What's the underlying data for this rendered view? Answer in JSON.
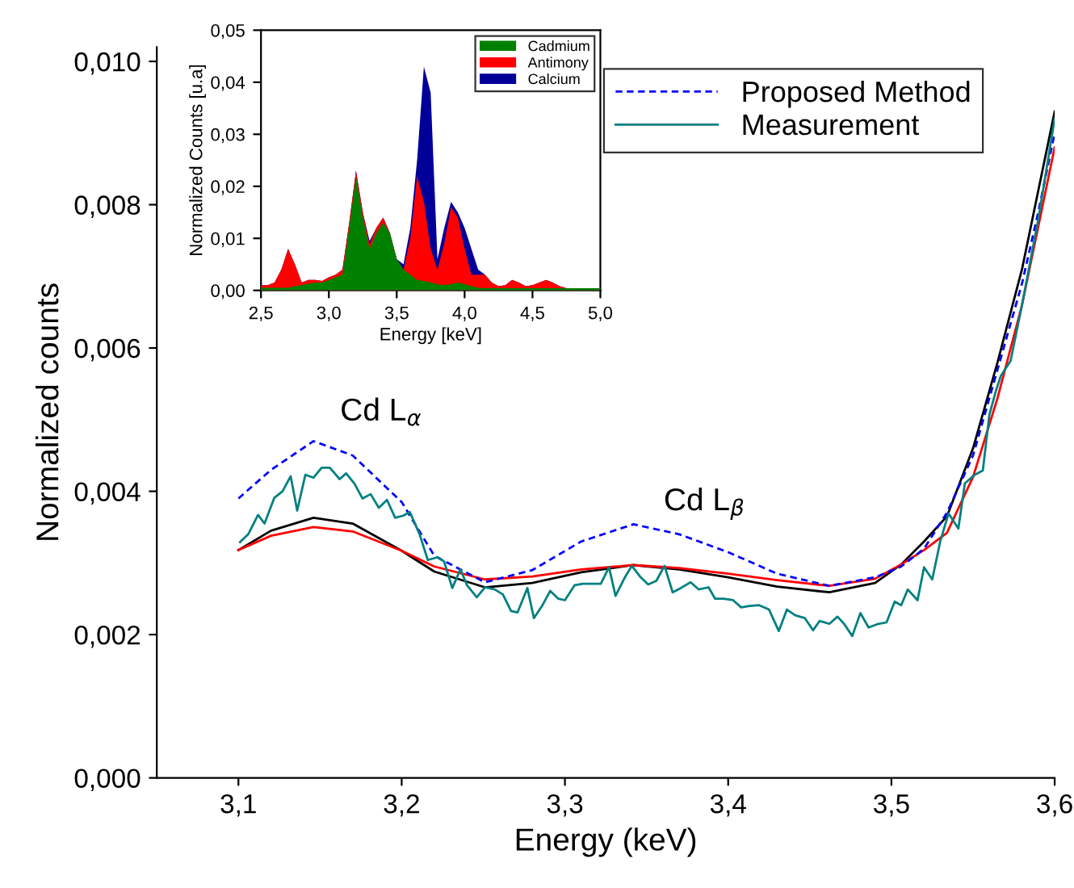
{
  "chart_data": [
    {
      "type": "line",
      "xlabel": "Energy (keV)",
      "ylabel": "Normalized counts",
      "xlim": [
        3.05,
        3.6
      ],
      "ylim": [
        0,
        0.0102
      ],
      "xticks": [
        {
          "value": 3.1,
          "label": "3,1"
        },
        {
          "value": 3.2,
          "label": "3,2"
        },
        {
          "value": 3.3,
          "label": "3,3"
        },
        {
          "value": 3.4,
          "label": "3,4"
        },
        {
          "value": 3.5,
          "label": "3,5"
        },
        {
          "value": 3.6,
          "label": "3,6"
        }
      ],
      "yticks": [
        {
          "value": 0,
          "label": "0,000"
        },
        {
          "value": 0.002,
          "label": "0,002"
        },
        {
          "value": 0.004,
          "label": "0,004"
        },
        {
          "value": 0.006,
          "label": "0,006"
        },
        {
          "value": 0.008,
          "label": "0,008"
        },
        {
          "value": 0.01,
          "label": "0,010"
        }
      ],
      "legend": "top right",
      "annotations": [
        "Cd L$_{α}$",
        "Cd L$_{β}$"
      ],
      "series": [
        {
          "color": "#000000",
          "line_style": "solid",
          "x": [
            3.1,
            3.12,
            3.146,
            3.17,
            3.2,
            3.22,
            3.251,
            3.28,
            3.31,
            3.342,
            3.37,
            3.4,
            3.43,
            3.462,
            3.49,
            3.506,
            3.52,
            3.534,
            3.55,
            3.565,
            3.58,
            3.59,
            3.6
          ],
          "values": [
            0.00318,
            0.00345,
            0.00363,
            0.00355,
            0.00317,
            0.00288,
            0.00266,
            0.00272,
            0.00287,
            0.00297,
            0.00291,
            0.0028,
            0.00267,
            0.00259,
            0.00272,
            0.00298,
            0.0033,
            0.00365,
            0.0046,
            0.0058,
            0.0071,
            0.0082,
            0.0093
          ]
        },
        {
          "color": "#ff0000",
          "line_style": "solid",
          "x": [
            3.1,
            3.12,
            3.146,
            3.17,
            3.2,
            3.22,
            3.251,
            3.28,
            3.31,
            3.342,
            3.37,
            3.4,
            3.43,
            3.462,
            3.49,
            3.506,
            3.52,
            3.534,
            3.55,
            3.565,
            3.58,
            3.59,
            3.6
          ],
          "values": [
            0.00318,
            0.00338,
            0.0035,
            0.00344,
            0.00317,
            0.00295,
            0.00277,
            0.00281,
            0.00291,
            0.00297,
            0.00293,
            0.00285,
            0.00276,
            0.00268,
            0.00278,
            0.00298,
            0.00318,
            0.00342,
            0.0042,
            0.0053,
            0.0066,
            0.0077,
            0.0088
          ]
        },
        {
          "name": "Proposed Method",
          "color": "#0000ff",
          "line_style": "dashed",
          "x": [
            3.1,
            3.12,
            3.146,
            3.17,
            3.2,
            3.22,
            3.251,
            3.28,
            3.31,
            3.342,
            3.37,
            3.4,
            3.43,
            3.462,
            3.49,
            3.506,
            3.52,
            3.534,
            3.55,
            3.565,
            3.58,
            3.59,
            3.6
          ],
          "values": [
            0.0039,
            0.0043,
            0.0047,
            0.0045,
            0.00385,
            0.0031,
            0.00273,
            0.0029,
            0.0033,
            0.00354,
            0.0034,
            0.00315,
            0.00285,
            0.00268,
            0.0028,
            0.00295,
            0.0032,
            0.0037,
            0.0045,
            0.0057,
            0.0069,
            0.0079,
            0.009
          ]
        },
        {
          "name": "Measurement",
          "color": "#008080",
          "line_style": "solid",
          "x": [
            3.101,
            3.106,
            3.112,
            3.116,
            3.122,
            3.127,
            3.132,
            3.136,
            3.141,
            3.146,
            3.151,
            3.156,
            3.162,
            3.166,
            3.171,
            3.176,
            3.181,
            3.186,
            3.191,
            3.196,
            3.201,
            3.205,
            3.211,
            3.216,
            3.222,
            3.226,
            3.231,
            3.236,
            3.24,
            3.246,
            3.251,
            3.257,
            3.262,
            3.267,
            3.271,
            3.277,
            3.281,
            3.286,
            3.291,
            3.296,
            3.3,
            3.306,
            3.311,
            3.317,
            3.322,
            3.327,
            3.331,
            3.337,
            3.341,
            3.346,
            3.351,
            3.356,
            3.361,
            3.366,
            3.371,
            3.377,
            3.382,
            3.388,
            3.392,
            3.397,
            3.403,
            3.408,
            3.413,
            3.419,
            3.425,
            3.431,
            3.436,
            3.441,
            3.447,
            3.452,
            3.456,
            3.462,
            3.467,
            3.471,
            3.476,
            3.481,
            3.486,
            3.492,
            3.497,
            3.502,
            3.506,
            3.51,
            3.516,
            3.52,
            3.525,
            3.53,
            3.535,
            3.541,
            3.545,
            3.551,
            3.556,
            3.56,
            3.564,
            3.567,
            3.573,
            3.58,
            3.59,
            3.6
          ],
          "values": [
            0.00329,
            0.0034,
            0.00367,
            0.00355,
            0.00391,
            0.004,
            0.00421,
            0.00373,
            0.00423,
            0.00419,
            0.00433,
            0.00433,
            0.00417,
            0.00425,
            0.00411,
            0.0039,
            0.00396,
            0.00377,
            0.00388,
            0.00363,
            0.00366,
            0.00371,
            0.0034,
            0.00304,
            0.00308,
            0.00302,
            0.00265,
            0.00291,
            0.00269,
            0.00252,
            0.00266,
            0.00263,
            0.00256,
            0.00233,
            0.00231,
            0.00265,
            0.00223,
            0.0024,
            0.00261,
            0.0025,
            0.00248,
            0.00269,
            0.00271,
            0.00271,
            0.00271,
            0.00294,
            0.00254,
            0.00281,
            0.00296,
            0.00281,
            0.0027,
            0.00275,
            0.00296,
            0.00259,
            0.00265,
            0.00273,
            0.00263,
            0.00266,
            0.0025,
            0.0025,
            0.00248,
            0.00238,
            0.0024,
            0.00241,
            0.00235,
            0.00205,
            0.00235,
            0.00227,
            0.00223,
            0.00206,
            0.00219,
            0.00215,
            0.00225,
            0.00215,
            0.00198,
            0.0023,
            0.0021,
            0.00215,
            0.00217,
            0.00246,
            0.00241,
            0.00263,
            0.00248,
            0.00294,
            0.00277,
            0.00331,
            0.00369,
            0.00348,
            0.00411,
            0.00423,
            0.00429,
            0.00507,
            0.0054,
            0.00561,
            0.00582,
            0.0066,
            0.0078,
            0.0092
          ]
        }
      ]
    },
    {
      "type": "area",
      "xlabel": "Energy [keV]",
      "ylabel": "Normalized Counts [u.a]",
      "xlim": [
        2.5,
        5.0
      ],
      "ylim": [
        0,
        0.05
      ],
      "xticks": [
        {
          "value": 2.5,
          "label": "2,5"
        },
        {
          "value": 3.0,
          "label": "3,0"
        },
        {
          "value": 3.5,
          "label": "3,5"
        },
        {
          "value": 4.0,
          "label": "4,0"
        },
        {
          "value": 4.5,
          "label": "4,5"
        },
        {
          "value": 5.0,
          "label": "5,0"
        }
      ],
      "yticks": [
        {
          "value": 0,
          "label": "0,00"
        },
        {
          "value": 0.01,
          "label": "0,01"
        },
        {
          "value": 0.02,
          "label": "0,02"
        },
        {
          "value": 0.03,
          "label": "0,03"
        },
        {
          "value": 0.04,
          "label": "0,04"
        },
        {
          "value": 0.05,
          "label": "0,05"
        }
      ],
      "legend": "top right",
      "x": [
        2.5,
        2.55,
        2.6,
        2.65,
        2.7,
        2.75,
        2.8,
        2.85,
        2.9,
        2.95,
        3.0,
        3.05,
        3.1,
        3.15,
        3.2,
        3.25,
        3.3,
        3.35,
        3.4,
        3.45,
        3.5,
        3.55,
        3.6,
        3.65,
        3.7,
        3.75,
        3.8,
        3.85,
        3.9,
        3.95,
        4.0,
        4.05,
        4.1,
        4.15,
        4.2,
        4.25,
        4.3,
        4.35,
        4.4,
        4.45,
        4.5,
        4.55,
        4.6,
        4.65,
        4.7,
        4.75,
        4.8,
        4.85,
        4.9,
        4.95,
        5.0
      ],
      "series": [
        {
          "name": "Cadmium",
          "color": "#008000",
          "values": [
            0.0005,
            0.0005,
            0.0005,
            0.0005,
            0.0005,
            0.0008,
            0.001,
            0.0013,
            0.0015,
            0.0015,
            0.002,
            0.0025,
            0.003,
            0.012,
            0.022,
            0.014,
            0.008,
            0.011,
            0.013,
            0.011,
            0.006,
            0.004,
            0.003,
            0.002,
            0.0018,
            0.0015,
            0.0012,
            0.001,
            0.0012,
            0.0015,
            0.0012,
            0.0008,
            0.0005,
            0.0004,
            0.0004,
            0.0004,
            0.0004,
            0.0004,
            0.0004,
            0.0004,
            0.0004,
            0.0004,
            0.0004,
            0.0004,
            0.0004,
            0.0004,
            0.0004,
            0.0004,
            0.0004,
            0.0004,
            0.0004
          ]
        },
        {
          "name": "Antimony",
          "color": "#ff0000",
          "values": [
            0.001,
            0.001,
            0.0015,
            0.004,
            0.008,
            0.005,
            0.0015,
            0.002,
            0.002,
            0.0018,
            0.0025,
            0.003,
            0.004,
            0.013,
            0.023,
            0.015,
            0.0088,
            0.012,
            0.014,
            0.011,
            0.006,
            0.004,
            0.01,
            0.022,
            0.017,
            0.008,
            0.004,
            0.009,
            0.016,
            0.014,
            0.008,
            0.003,
            0.003,
            0.003,
            0.0015,
            0.0008,
            0.001,
            0.002,
            0.0015,
            0.0008,
            0.001,
            0.0015,
            0.002,
            0.0015,
            0.0008,
            0.0004,
            0.0004,
            0.0004,
            0.0004,
            0.0004,
            0.0004
          ]
        },
        {
          "name": "Calcium",
          "color": "#000099",
          "values": [
            0.001,
            0.001,
            0.0015,
            0.004,
            0.008,
            0.005,
            0.0015,
            0.002,
            0.002,
            0.0018,
            0.0025,
            0.003,
            0.004,
            0.013,
            0.023,
            0.015,
            0.0095,
            0.012,
            0.014,
            0.011,
            0.006,
            0.005,
            0.012,
            0.025,
            0.043,
            0.038,
            0.006,
            0.012,
            0.017,
            0.015,
            0.012,
            0.008,
            0.004,
            0.003,
            0.0015,
            0.0008,
            0.001,
            0.002,
            0.0015,
            0.0008,
            0.001,
            0.0015,
            0.002,
            0.0015,
            0.0008,
            0.0004,
            0.0004,
            0.0004,
            0.0004,
            0.0004,
            0.0004
          ]
        }
      ]
    }
  ]
}
